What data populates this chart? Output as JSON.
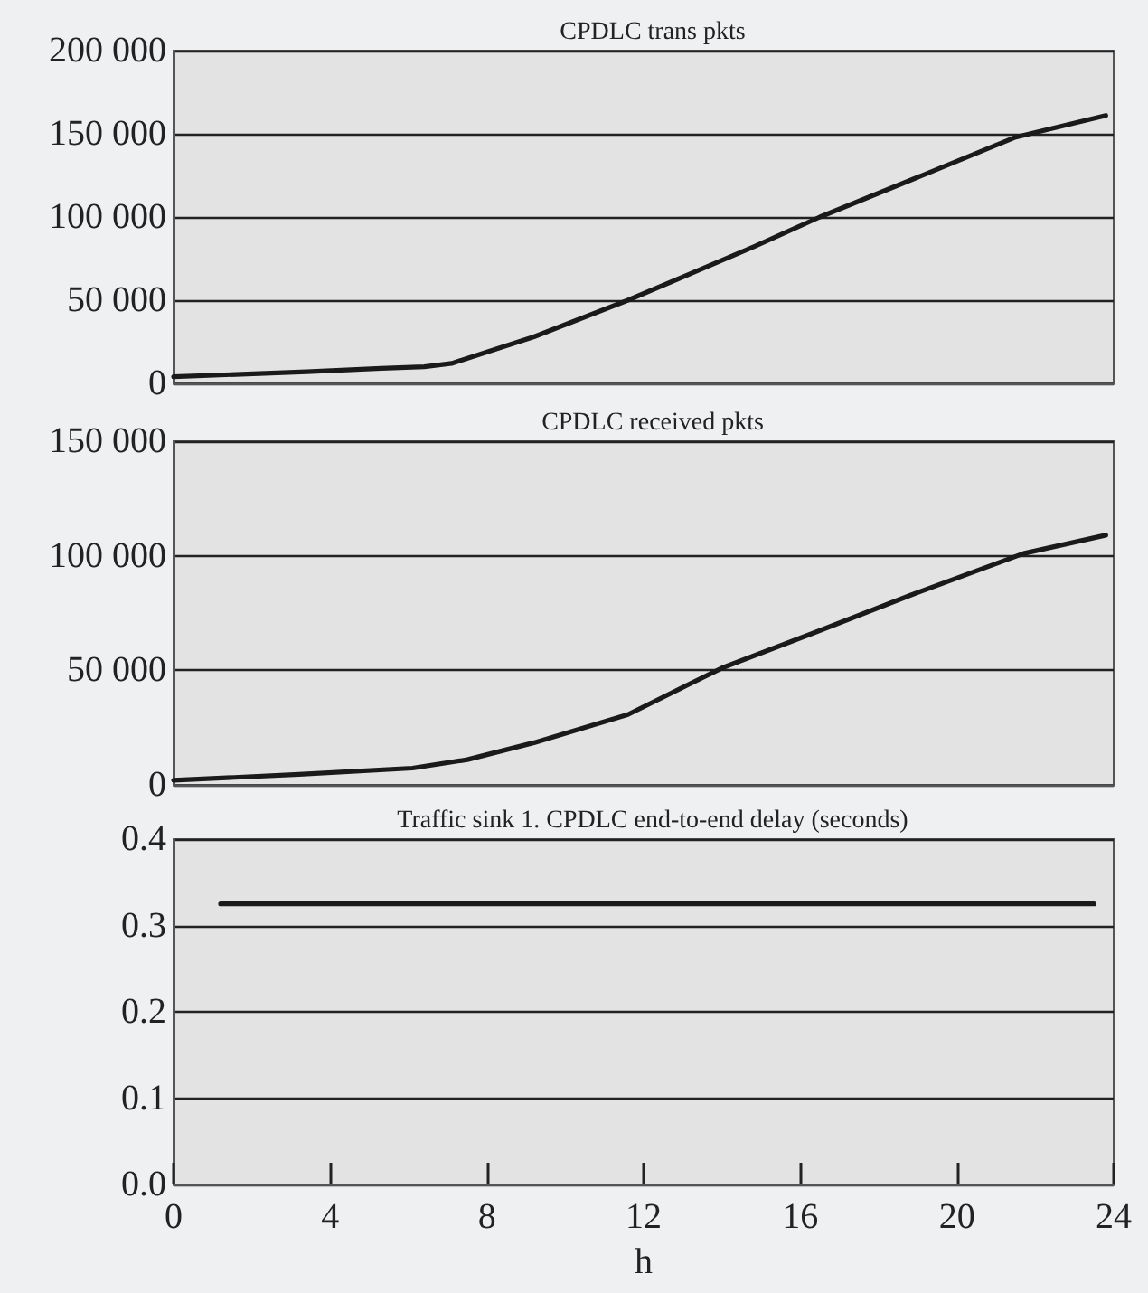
{
  "chart_data": [
    {
      "type": "line",
      "title": "CPDLC trans pkts",
      "xlim": [
        0,
        24
      ],
      "xticks": [
        0,
        4,
        8,
        12,
        16,
        20,
        24
      ],
      "ylim": [
        0,
        200000
      ],
      "yticks": [
        {
          "value": 0,
          "label": "0"
        },
        {
          "value": 50000,
          "label": "50 000"
        },
        {
          "value": 100000,
          "label": "100 000"
        },
        {
          "value": 150000,
          "label": "150 000"
        },
        {
          "value": 200000,
          "label": "200 000"
        }
      ],
      "grid": "y",
      "tick_labels": "y",
      "marker": "none",
      "line_style": "solid",
      "series": [
        {
          "color": "#1a1a1a",
          "x": [
            0,
            3.4,
            5.3,
            6.4,
            7.1,
            9.2,
            10.4,
            11.6,
            13.2,
            14.8,
            16.5,
            18.8,
            21.5,
            23.8
          ],
          "values": [
            4000,
            7000,
            9000,
            10000,
            12000,
            28000,
            39000,
            50000,
            66000,
            82000,
            100000,
            122000,
            148000,
            161000
          ]
        }
      ]
    },
    {
      "type": "line",
      "title": "CPDLC received pkts",
      "xlim": [
        0,
        24
      ],
      "xticks": [
        0,
        4,
        8,
        12,
        16,
        20,
        24
      ],
      "ylim": [
        0,
        150000
      ],
      "yticks": [
        {
          "value": 0,
          "label": "0"
        },
        {
          "value": 50000,
          "label": "50 000"
        },
        {
          "value": 100000,
          "label": "100 000"
        },
        {
          "value": 150000,
          "label": "150 000"
        }
      ],
      "grid": "y",
      "tick_labels": "y",
      "marker": "none",
      "line_style": "solid",
      "series": [
        {
          "color": "#1a1a1a",
          "x": [
            0,
            3.2,
            6.1,
            7.5,
            9.2,
            11.6,
            14,
            16.4,
            18.8,
            21.7,
            23.8
          ],
          "values": [
            2000,
            4600,
            7300,
            11000,
            18400,
            30700,
            51000,
            66700,
            82700,
            101000,
            109000
          ]
        }
      ]
    },
    {
      "type": "line",
      "title": "Traffic sink 1. CPDLC end-to-end delay (seconds)",
      "xlabel": "h",
      "xlim": [
        0,
        24
      ],
      "xticks": [
        0,
        4,
        8,
        12,
        16,
        20,
        24
      ],
      "ylim": [
        0,
        0.4
      ],
      "yticks": [
        {
          "value": 0,
          "label": "0.0"
        },
        0.1,
        0.2,
        0.3,
        0.4
      ],
      "grid": "y",
      "marker": "none",
      "line_style": "solid",
      "series": [
        {
          "color": "#1a1a1a",
          "x": [
            1.2,
            23.5
          ],
          "values": [
            0.325,
            0.325
          ]
        }
      ]
    }
  ]
}
